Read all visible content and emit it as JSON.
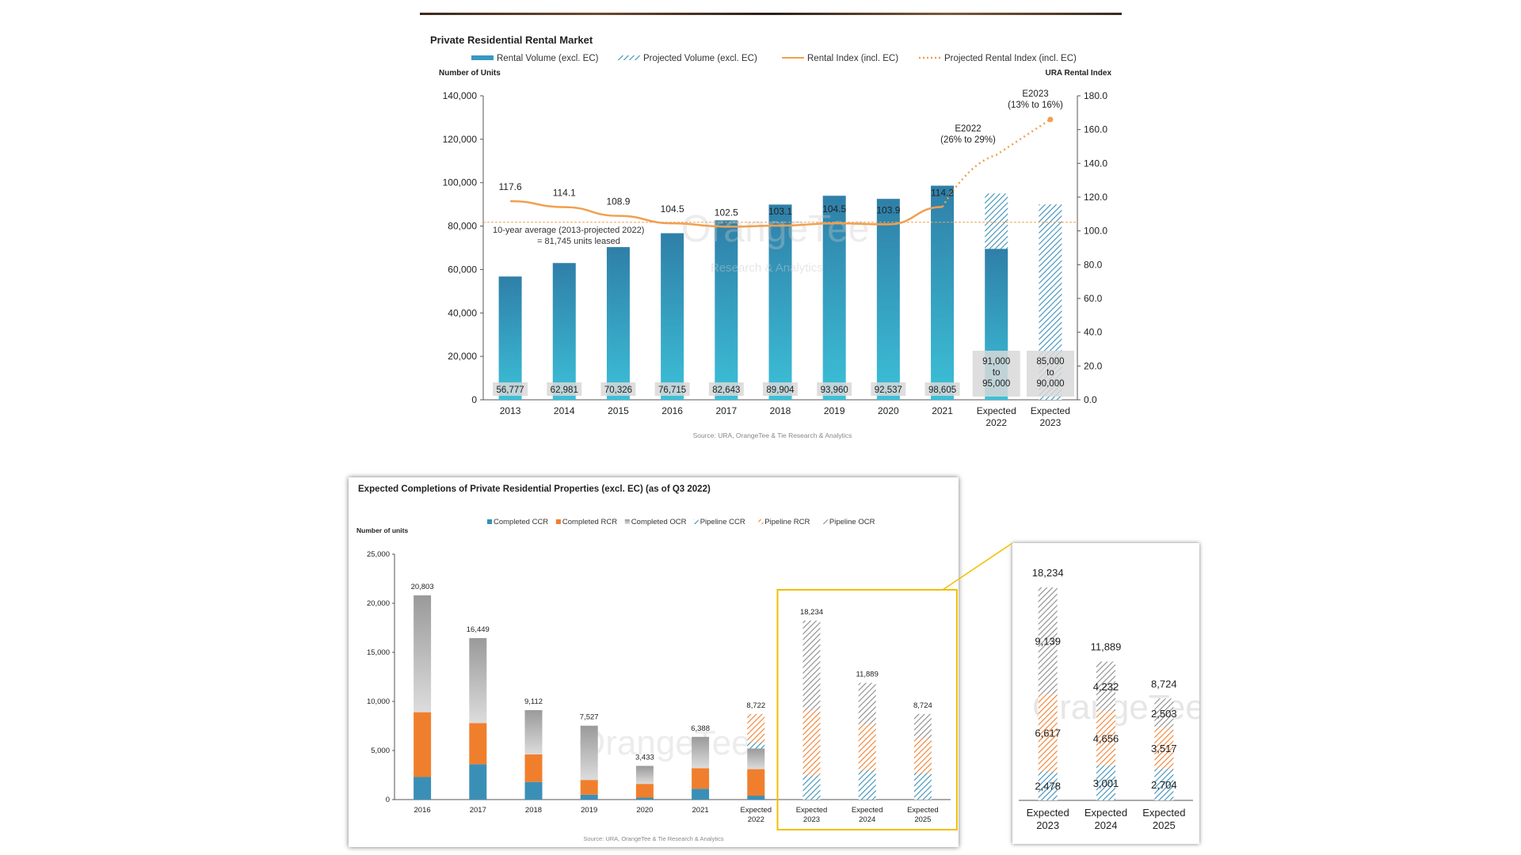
{
  "colors": {
    "rental_volume": "#3a98c0",
    "rental_index": "#f0a050",
    "ccr": "#3a8fb7",
    "rcr": "#f07f2d",
    "ocr": "#a7a7a7",
    "highlight": "#f0c000"
  },
  "chart_data": [
    {
      "type": "bar",
      "title": "Private Residential Rental Market",
      "legend": [
        "Rental Volume (excl. EC)",
        "Projected Volume (excl. EC)",
        "Rental Index (incl. EC)",
        "Projected Rental Index (incl. EC)"
      ],
      "legend_position": "top",
      "ylabel_left": "Number of Units",
      "ylabel_right": "URA Rental Index",
      "ylim_left": [
        0,
        140000
      ],
      "ylim_right": [
        0,
        180
      ],
      "yticks_left": [
        "0",
        "20,000",
        "40,000",
        "60,000",
        "80,000",
        "100,000",
        "120,000",
        "140,000"
      ],
      "yticks_right": [
        "0.0",
        "20.0",
        "40.0",
        "60.0",
        "80.0",
        "100.0",
        "120.0",
        "140.0",
        "160.0",
        "180.0"
      ],
      "categories": [
        "2013",
        "2014",
        "2015",
        "2016",
        "2017",
        "2018",
        "2019",
        "2020",
        "2021",
        "Expected 2022",
        "Expected 2023"
      ],
      "volume_values": [
        56777,
        62981,
        70326,
        76715,
        82643,
        89904,
        93960,
        92537,
        98605,
        95000,
        90000
      ],
      "volume_actual_part": [
        56777,
        62981,
        70326,
        76715,
        82643,
        89904,
        93960,
        92537,
        98605,
        69500,
        0
      ],
      "volume_labels": [
        "56,777",
        "62,981",
        "70,326",
        "76,715",
        "82,643",
        "89,904",
        "93,960",
        "92,537",
        "98,605",
        "91,000 to 95,000",
        "85,000 to 90,000"
      ],
      "rental_index": [
        117.6,
        114.1,
        108.9,
        104.5,
        102.5,
        103.1,
        104.5,
        103.9,
        114.2
      ],
      "rental_index_labels": [
        "117.6",
        "114.1",
        "108.9",
        "104.5",
        "102.5",
        "103.1",
        "104.5",
        "103.9",
        "114.2"
      ],
      "projected_index": [
        114.2,
        145.0,
        166.0
      ],
      "average_units": 81745,
      "average_label_line1": "10-year average (2013-projected 2022)",
      "average_label_line2": "= 81,745 units leased",
      "annotations": [
        {
          "line1": "E2022",
          "line2": "(26% to 29%)"
        },
        {
          "line1": "E2023",
          "line2": "(13% to 16%)"
        }
      ],
      "source": "Source: URA, OrangeTee & Tie Research & Analytics",
      "watermark": "OrangeTee",
      "watermark_sub": "Research & Analytics"
    },
    {
      "type": "bar",
      "stacked": true,
      "title": "Expected Completions of Private Residential Properties (excl. EC) (as of Q3 2022)",
      "legend": [
        "Completed CCR",
        "Completed RCR",
        "Completed OCR",
        "Pipeline CCR",
        "Pipeline RCR",
        "Pipeline OCR"
      ],
      "legend_position": "top",
      "ylabel": "Number of units",
      "ylim": [
        0,
        25000
      ],
      "yticks": [
        "0",
        "5,000",
        "10,000",
        "15,000",
        "20,000",
        "25,000"
      ],
      "categories": [
        "2016",
        "2017",
        "2018",
        "2019",
        "2020",
        "2021",
        "Expected 2022",
        "Expected 2023",
        "Expected 2024",
        "Expected 2025"
      ],
      "series": [
        {
          "name": "Completed CCR",
          "values": [
            2300,
            3600,
            1800,
            500,
            200,
            1100,
            400,
            0,
            0,
            0
          ]
        },
        {
          "name": "Completed RCR",
          "values": [
            6600,
            4200,
            2800,
            1500,
            1400,
            2100,
            2700,
            0,
            0,
            0
          ]
        },
        {
          "name": "Completed OCR",
          "values": [
            11903,
            8649,
            4512,
            5527,
            1833,
            3188,
            2100,
            0,
            0,
            0
          ]
        },
        {
          "name": "Pipeline CCR",
          "values": [
            0,
            0,
            0,
            0,
            0,
            0,
            600,
            2478,
            3001,
            2704
          ]
        },
        {
          "name": "Pipeline RCR",
          "values": [
            0,
            0,
            0,
            0,
            0,
            0,
            2922,
            6617,
            4656,
            3517
          ]
        },
        {
          "name": "Pipeline OCR",
          "values": [
            0,
            0,
            0,
            0,
            0,
            0,
            0,
            9139,
            4232,
            2503
          ]
        }
      ],
      "totals": [
        "20,803",
        "16,449",
        "9,112",
        "7,527",
        "3,433",
        "6,388",
        "8,722",
        "18,234",
        "11,889",
        "8,724"
      ],
      "source": "Source: URA, OrangeTee & Tie Research & Analytics",
      "watermark": "OrangeTee"
    },
    {
      "type": "bar",
      "stacked": true,
      "categories": [
        "Expected 2023",
        "Expected 2024",
        "Expected 2025"
      ],
      "series": [
        {
          "name": "Pipeline CCR",
          "values": [
            2478,
            3001,
            2704
          ]
        },
        {
          "name": "Pipeline RCR",
          "values": [
            6617,
            4656,
            3517
          ]
        },
        {
          "name": "Pipeline OCR",
          "values": [
            9139,
            4232,
            2503
          ]
        }
      ],
      "segment_labels": [
        [
          "2,478",
          "6,617",
          "9,139"
        ],
        [
          "3,001",
          "4,656",
          "4,232"
        ],
        [
          "2,704",
          "3,517",
          "2,503"
        ]
      ],
      "totals": [
        "18,234",
        "11,889",
        "8,724"
      ],
      "watermark": "OrangeTee"
    }
  ]
}
